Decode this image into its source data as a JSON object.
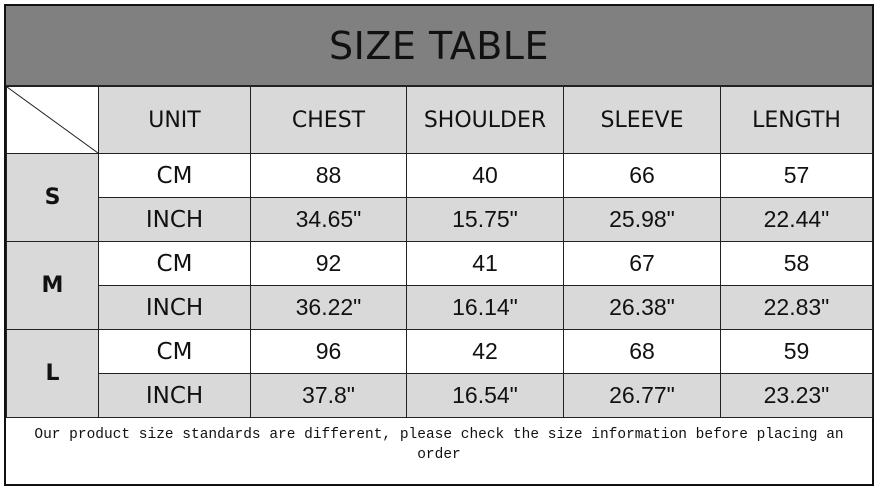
{
  "title": "SIZE TABLE",
  "headers": [
    "UNIT",
    "CHEST",
    "SHOULDER",
    "SLEEVE",
    "LENGTH"
  ],
  "rows": [
    {
      "size": "S",
      "cm": {
        "unit": "CM",
        "values": [
          "88",
          "40",
          "66",
          "57"
        ]
      },
      "inch": {
        "unit": "INCH",
        "values": [
          "34.65\"",
          "15.75\"",
          "25.98\"",
          "22.44\""
        ]
      }
    },
    {
      "size": "M",
      "cm": {
        "unit": "CM",
        "values": [
          "92",
          "41",
          "67",
          "58"
        ]
      },
      "inch": {
        "unit": "INCH",
        "values": [
          "36.22\"",
          "16.14\"",
          "26.38\"",
          "22.83\""
        ]
      }
    },
    {
      "size": "L",
      "cm": {
        "unit": "CM",
        "values": [
          "96",
          "42",
          "68",
          "59"
        ]
      },
      "inch": {
        "unit": "INCH",
        "values": [
          "37.8\"",
          "16.54\"",
          "26.77\"",
          "23.23\""
        ]
      }
    }
  ],
  "footer": "Our product size standards are different, please check the size information before placing an order",
  "colors": {
    "title_bg": "#808080",
    "header_bg": "#d9d9d9",
    "alt_row_bg": "#d9d9d9"
  }
}
